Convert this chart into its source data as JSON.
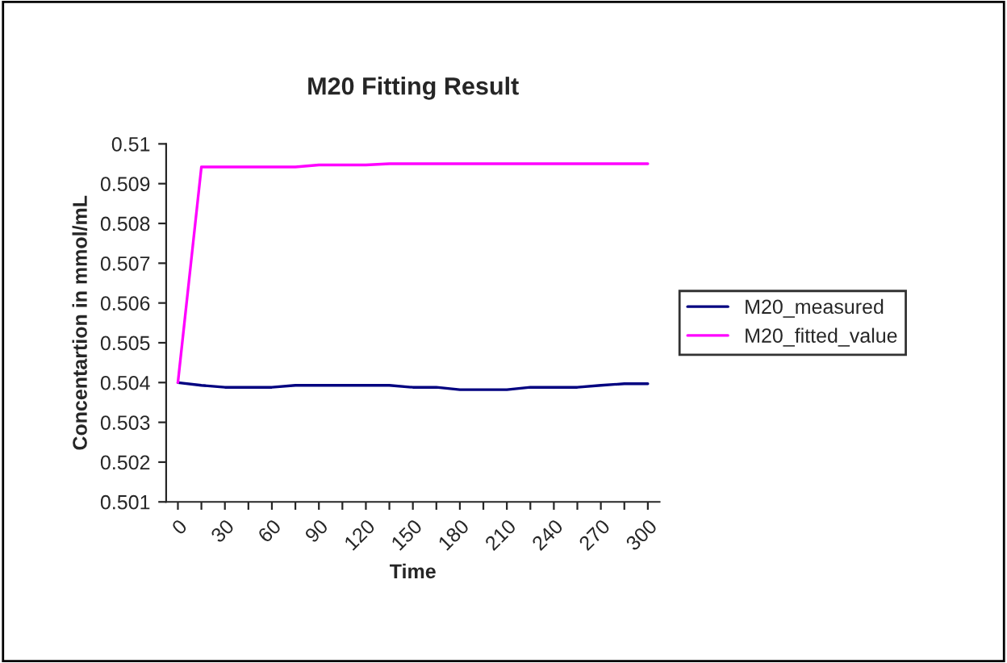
{
  "chart_data": {
    "type": "line",
    "title": "M20 Fitting Result",
    "xlabel": "Time",
    "ylabel": "Concentartion in mmol/mL",
    "categories": [
      "0",
      null,
      "30",
      null,
      "60",
      null,
      "90",
      null,
      "120",
      null,
      "150",
      null,
      "180",
      null,
      "210",
      null,
      "240",
      null,
      "270",
      null,
      "300"
    ],
    "series": [
      {
        "name": "M20_measured",
        "color": "#000080",
        "values": [
          0.504,
          0.50393,
          0.50388,
          0.50388,
          0.50388,
          0.50393,
          0.50393,
          0.50393,
          0.50393,
          0.50393,
          0.50388,
          0.50388,
          0.50382,
          0.50382,
          0.50382,
          0.50388,
          0.50388,
          0.50388,
          0.50393,
          0.50397,
          0.50397
        ]
      },
      {
        "name": "M20_fitted_value",
        "color": "#ff00ff",
        "values": [
          0.504,
          0.50942,
          0.50942,
          0.50942,
          0.50942,
          0.50942,
          0.50947,
          0.50947,
          0.50947,
          0.5095,
          0.5095,
          0.5095,
          0.5095,
          0.5095,
          0.5095,
          0.5095,
          0.5095,
          0.5095,
          0.5095,
          0.5095,
          0.5095
        ]
      }
    ],
    "ylim": [
      0.501,
      0.51
    ],
    "yticks": [
      0.501,
      0.502,
      0.503,
      0.504,
      0.505,
      0.506,
      0.507,
      0.508,
      0.509,
      0.51
    ],
    "grid": false,
    "legend": "right",
    "marker": "none",
    "line_style": "solid"
  }
}
